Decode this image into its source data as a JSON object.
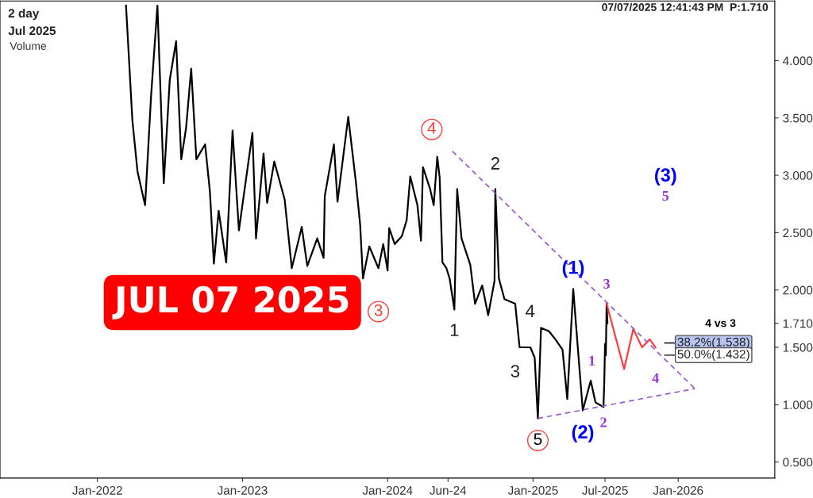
{
  "chart_data": {
    "type": "line",
    "title": "2 day",
    "subtitle": "Jul 2025",
    "x": [
      "2022-03-14",
      "2022-03-30",
      "2022-04-12",
      "2022-05-01",
      "2022-05-16",
      "2022-06-01",
      "2022-06-17",
      "2022-07-02",
      "2022-07-18",
      "2022-07-31",
      "2022-08-12",
      "2022-08-25",
      "2022-09-07",
      "2022-09-29",
      "2022-10-11",
      "2022-10-21",
      "2022-11-02",
      "2022-11-21",
      "2022-12-07",
      "2022-12-23",
      "2023-01-26",
      "2023-02-04",
      "2023-02-23",
      "2023-03-04",
      "2023-03-22",
      "2023-04-17",
      "2023-05-05",
      "2023-05-30",
      "2023-06-13",
      "2023-07-08",
      "2023-07-24",
      "2023-07-27",
      "2023-08-19",
      "2023-08-28",
      "2023-09-24",
      "2023-10-13",
      "2023-10-24",
      "2023-10-31",
      "2023-11-16",
      "2023-12-09",
      "2023-12-21",
      "2024-01-01",
      "2024-01-05",
      "2024-01-19",
      "2024-02-06",
      "2024-02-18",
      "2024-02-27",
      "2024-03-16",
      "2024-03-25",
      "2024-03-30",
      "2024-04-17",
      "2024-04-26",
      "2024-05-05",
      "2024-05-11",
      "2024-05-18",
      "2024-05-28",
      "2024-06-05",
      "2024-06-17",
      "2024-06-24",
      "2024-07-05",
      "2024-07-27",
      "2024-08-08",
      "2024-08-26",
      "2024-09-10",
      "2024-09-26",
      "2024-09-28",
      "2024-10-07",
      "2024-10-21",
      "2024-11-17",
      "2024-11-24",
      "2024-11-28",
      "2024-12-25",
      "2025-01-05",
      "2025-01-13",
      "2025-01-21",
      "2025-02-10",
      "2025-02-26",
      "2025-03-16",
      "2025-03-28",
      "2025-04-12",
      "2025-04-18",
      "2025-05-06",
      "2025-05-26",
      "2025-06-07",
      "2025-06-27",
      "2025-06-29",
      "2025-07-01",
      "2025-07-03",
      "2025-07-05",
      "2025-07-07"
    ],
    "series": [
      {
        "color": "#000000",
        "values": [
          4.48,
          3.48,
          3.03,
          2.74,
          3.69,
          4.48,
          2.93,
          3.83,
          4.17,
          3.14,
          3.41,
          3.93,
          3.14,
          3.27,
          2.86,
          2.23,
          2.69,
          2.24,
          3.39,
          2.52,
          3.37,
          2.45,
          3.19,
          2.76,
          3.12,
          2.79,
          2.19,
          2.55,
          2.21,
          2.45,
          2.28,
          2.82,
          3.27,
          2.77,
          3.51,
          2.95,
          2.57,
          2.1,
          2.38,
          2.19,
          2.4,
          2.17,
          2.54,
          2.4,
          2.47,
          2.61,
          2.99,
          2.74,
          2.43,
          3.07,
          2.88,
          2.74,
          3.16,
          2.98,
          2.24,
          2.19,
          2.1,
          1.83,
          2.88,
          2.45,
          2.22,
          1.88,
          2.04,
          1.78,
          2.08,
          2.88,
          2.1,
          1.92,
          1.88,
          1.64,
          1.5,
          1.5,
          1.41,
          0.88,
          1.67,
          1.64,
          1.57,
          1.48,
          1.05,
          2.01,
          1.74,
          0.95,
          1.21,
          1.02,
          0.98,
          1.19,
          1.53,
          1.43,
          1.88,
          1.71
        ]
      },
      {
        "color": "#ff3b3b",
        "x": [
          "2025-07-05",
          "2025-08-18",
          "2025-09-10",
          "2025-10-02",
          "2025-10-21",
          "2025-11-05"
        ],
        "values": [
          1.88,
          1.31,
          1.66,
          1.5,
          1.57,
          1.5
        ]
      },
      {
        "color": "#9b59d0",
        "line_style": "dashed",
        "x": [
          "2024-06-12",
          "2026-02-12"
        ],
        "values": [
          3.21,
          1.14
        ]
      },
      {
        "color": "#9b59d0",
        "line_style": "dashed",
        "x": [
          "2025-01-13",
          "2026-02-12"
        ],
        "values": [
          0.88,
          1.14
        ]
      }
    ],
    "xlim": [
      "2021-05-01",
      "2026-09-01"
    ],
    "xticks": [
      {
        "value": "2022-01-01",
        "label": "Jan-2022"
      },
      {
        "value": "2023-01-01",
        "label": "Jan-2023"
      },
      {
        "value": "2024-01-01",
        "label": "Jan-2024"
      },
      {
        "value": "2024-06-01",
        "label": "Jun-24"
      },
      {
        "value": "2025-01-01",
        "label": "Jan-2025"
      },
      {
        "value": "2025-07-01",
        "label": "Jul-2025"
      },
      {
        "value": "2026-01-01",
        "label": "Jan-2026"
      }
    ],
    "ylim": [
      0.36,
      4.52
    ],
    "yticks": [
      {
        "value": 0.5,
        "label": "0.500"
      },
      {
        "value": 1,
        "label": "1.000"
      },
      {
        "value": 1.5,
        "label": "1.500"
      },
      {
        "value": 1.71,
        "label": "1.710"
      },
      {
        "value": 2,
        "label": "2.000"
      },
      {
        "value": 2.5,
        "label": "2.500"
      },
      {
        "value": 3,
        "label": "3.000"
      },
      {
        "value": 3.5,
        "label": "3.500"
      },
      {
        "value": 4,
        "label": "4.000"
      }
    ],
    "ref_lines": [
      {
        "axis": "y",
        "value": 1.538,
        "label": "38.2%(1.538)"
      },
      {
        "axis": "y",
        "value": 1.432,
        "label": "50.0%(1.432)"
      }
    ],
    "annotations": [
      "JUL 07 2025",
      "Volume",
      "07/07/2025 12:41:43 PM  P:1.710",
      "(3)",
      "5",
      "4 vs 3",
      {
        "text": "4",
        "x": "2024-05-05",
        "y": 3.16
      },
      {
        "text": "3",
        "x": "2023-10-31",
        "y": 2.1
      },
      {
        "text": "5",
        "x": "2025-01-13",
        "y": 0.88
      },
      {
        "text": "1",
        "x": "2024-06-17",
        "y": 1.83
      },
      {
        "text": "2",
        "x": "2024-09-28",
        "y": 2.88
      },
      {
        "text": "3",
        "x": "2024-11-28",
        "y": 1.5
      },
      {
        "text": "4",
        "x": "2024-11-24",
        "y": 1.64
      },
      {
        "text": "(1)",
        "x": "2025-04-12",
        "y": 2.01
      },
      {
        "text": "(2)",
        "x": "2025-05-06",
        "y": 0.95
      },
      {
        "text": "1",
        "x": "2025-05-26",
        "y": 1.21
      },
      {
        "text": "2",
        "x": "2025-06-27",
        "y": 0.98
      },
      {
        "text": "3",
        "x": "2025-07-05",
        "y": 1.88
      },
      {
        "text": "4",
        "x": "2025-11-05",
        "y": 1.5
      }
    ],
    "grid": false,
    "marker": "none"
  }
}
